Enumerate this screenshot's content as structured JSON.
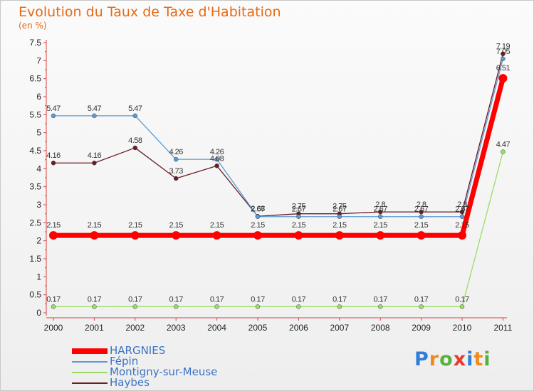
{
  "chart_data": {
    "type": "line",
    "title": "Evolution du Taux de Taxe d'Habitation",
    "subtitle": "(en %)",
    "xlabel": "",
    "ylabel": "",
    "x": [
      "2000",
      "2001",
      "2002",
      "2003",
      "2004",
      "2005",
      "2006",
      "2007",
      "2008",
      "2009",
      "2010",
      "2011"
    ],
    "ylim": [
      0,
      7.5
    ],
    "yticks": [
      "0",
      "0.5",
      "1",
      "1.5",
      "2",
      "2.5",
      "3",
      "3.5",
      "4",
      "4.5",
      "5",
      "5.5",
      "6",
      "6.5",
      "7",
      "7.5"
    ],
    "series": [
      {
        "name": "Haybes",
        "color": "#6b1c24",
        "values": [
          4.16,
          4.16,
          4.58,
          3.73,
          4.08,
          2.68,
          2.75,
          2.75,
          2.8,
          2.8,
          2.8,
          7.19
        ],
        "labels": [
          "4.16",
          "4.16",
          "4.58",
          "3.73",
          "4.08",
          "2.68",
          "2.75",
          "2.75",
          "2.8",
          "2.8",
          "2.8",
          "7.19"
        ]
      },
      {
        "name": "Fépin",
        "color": "#5b9bd5",
        "values": [
          5.47,
          5.47,
          5.47,
          4.26,
          4.26,
          2.67,
          2.67,
          2.67,
          2.67,
          2.67,
          2.67,
          7.05
        ],
        "labels": [
          "5.47",
          "5.47",
          "5.47",
          "4.26",
          "4.26",
          "2.67",
          "2.67",
          "2.67",
          "2.67",
          "2.67",
          "2.67",
          "7.05"
        ]
      },
      {
        "name": "Montigny-sur-Meuse",
        "color": "#99dd66",
        "values": [
          0.17,
          0.17,
          0.17,
          0.17,
          0.17,
          0.17,
          0.17,
          0.17,
          0.17,
          0.17,
          0.17,
          4.47
        ],
        "labels": [
          "0.17",
          "0.17",
          "0.17",
          "0.17",
          "0.17",
          "0.17",
          "0.17",
          "0.17",
          "0.17",
          "0.17",
          "0.17",
          "4.47"
        ]
      },
      {
        "name": "HARGNIES",
        "color": "#ff0000",
        "values": [
          2.15,
          2.15,
          2.15,
          2.15,
          2.15,
          2.15,
          2.15,
          2.15,
          2.15,
          2.15,
          2.15,
          6.51
        ],
        "labels": [
          "2.15",
          "2.15",
          "2.15",
          "2.15",
          "2.15",
          "2.15",
          "2.15",
          "2.15",
          "2.15",
          "2.15",
          "2.15",
          "6.51"
        ]
      }
    ],
    "legend": [
      "HARGNIES",
      "Fépin",
      "Montigny-sur-Meuse",
      "Haybes"
    ],
    "legend_position": "bottom-left",
    "grid": false
  },
  "logo": {
    "letters": [
      "P",
      "r",
      "o",
      "x",
      "i",
      "t",
      "i"
    ],
    "colors": [
      "#2f7fd8",
      "#f08a1c",
      "#56b23a",
      "#e63a2e",
      "#2f7fd8",
      "#f08a1c",
      "#56b23a"
    ]
  }
}
